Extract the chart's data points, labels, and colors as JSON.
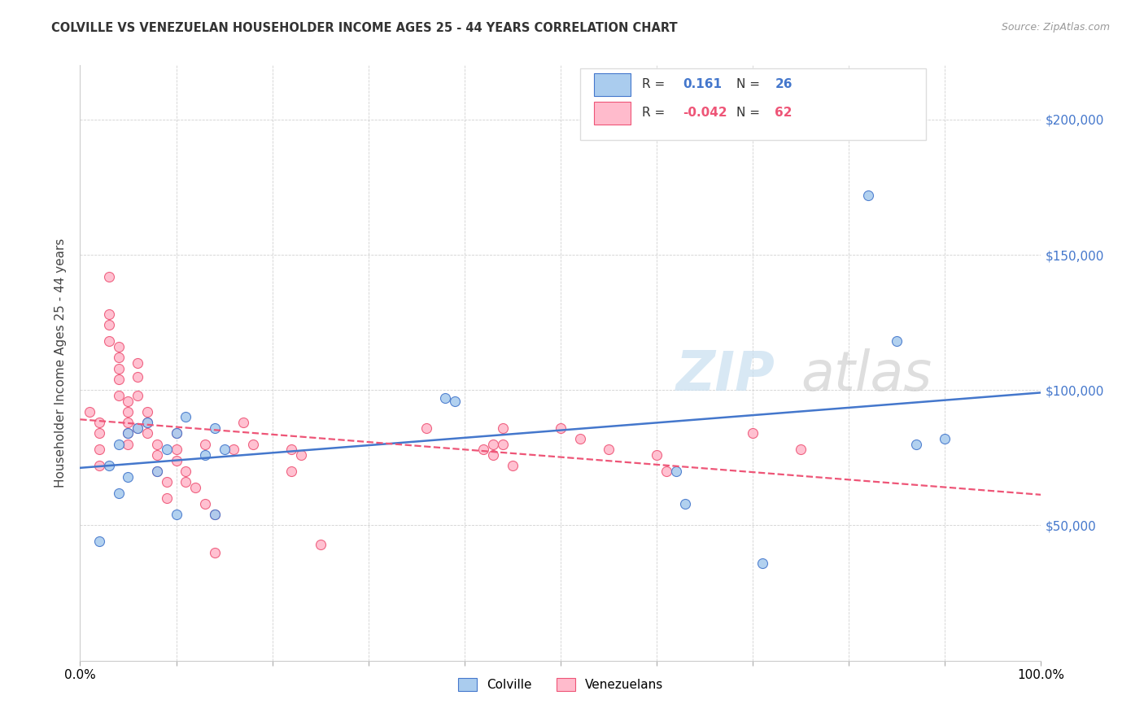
{
  "title": "COLVILLE VS VENEZUELAN HOUSEHOLDER INCOME AGES 25 - 44 YEARS CORRELATION CHART",
  "source": "Source: ZipAtlas.com",
  "ylabel": "Householder Income Ages 25 - 44 years",
  "yticks": [
    0,
    50000,
    100000,
    150000,
    200000
  ],
  "ytick_labels": [
    "",
    "$50,000",
    "$100,000",
    "$150,000",
    "$200,000"
  ],
  "xlim": [
    0.0,
    1.0
  ],
  "ylim": [
    0,
    220000
  ],
  "colville_color": "#aaccee",
  "venezuelan_color": "#ffbbcc",
  "trend_colville_color": "#4477cc",
  "trend_venezuelan_color": "#ee5577",
  "colville_points_x": [
    0.02,
    0.03,
    0.04,
    0.04,
    0.05,
    0.05,
    0.06,
    0.07,
    0.08,
    0.09,
    0.1,
    0.1,
    0.11,
    0.13,
    0.14,
    0.14,
    0.15,
    0.38,
    0.39,
    0.62,
    0.63,
    0.71,
    0.82,
    0.85,
    0.87,
    0.9
  ],
  "colville_points_y": [
    44000,
    72000,
    80000,
    62000,
    84000,
    68000,
    86000,
    88000,
    70000,
    78000,
    84000,
    54000,
    90000,
    76000,
    86000,
    54000,
    78000,
    97000,
    96000,
    70000,
    58000,
    36000,
    172000,
    118000,
    80000,
    82000
  ],
  "venezuelan_points_x": [
    0.01,
    0.02,
    0.02,
    0.02,
    0.02,
    0.03,
    0.03,
    0.03,
    0.03,
    0.04,
    0.04,
    0.04,
    0.04,
    0.04,
    0.05,
    0.05,
    0.05,
    0.05,
    0.05,
    0.06,
    0.06,
    0.06,
    0.06,
    0.07,
    0.07,
    0.07,
    0.08,
    0.08,
    0.08,
    0.09,
    0.09,
    0.1,
    0.1,
    0.1,
    0.11,
    0.11,
    0.12,
    0.13,
    0.13,
    0.14,
    0.14,
    0.16,
    0.17,
    0.18,
    0.22,
    0.22,
    0.23,
    0.25,
    0.36,
    0.42,
    0.43,
    0.43,
    0.44,
    0.44,
    0.45,
    0.5,
    0.52,
    0.55,
    0.6,
    0.61,
    0.7,
    0.75
  ],
  "venezuelan_points_y": [
    92000,
    88000,
    84000,
    78000,
    72000,
    142000,
    128000,
    124000,
    118000,
    116000,
    112000,
    108000,
    104000,
    98000,
    96000,
    92000,
    88000,
    84000,
    80000,
    110000,
    105000,
    98000,
    86000,
    92000,
    88000,
    84000,
    80000,
    76000,
    70000,
    66000,
    60000,
    84000,
    78000,
    74000,
    70000,
    66000,
    64000,
    80000,
    58000,
    54000,
    40000,
    78000,
    88000,
    80000,
    78000,
    70000,
    76000,
    43000,
    86000,
    78000,
    80000,
    76000,
    86000,
    80000,
    72000,
    86000,
    82000,
    78000,
    76000,
    70000,
    84000,
    78000
  ]
}
